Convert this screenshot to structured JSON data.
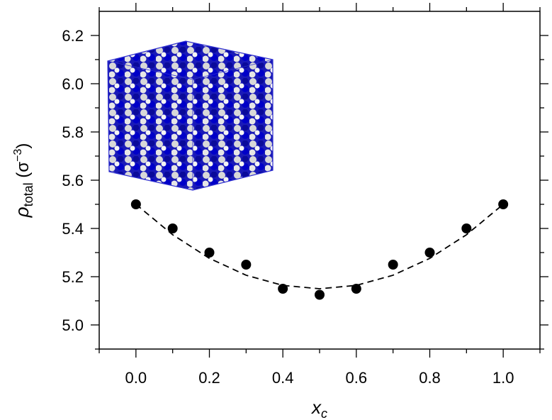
{
  "chart_data": {
    "type": "scatter",
    "xlabel_parts": [
      "x",
      "c"
    ],
    "ylabel_parts": [
      "ρ",
      "total",
      " (σ",
      "−3",
      ")"
    ],
    "x": [
      0.0,
      0.1,
      0.2,
      0.3,
      0.4,
      0.5,
      0.6,
      0.7,
      0.8,
      0.9,
      1.0
    ],
    "values": [
      5.5,
      5.4,
      5.3,
      5.25,
      5.15,
      5.125,
      5.15,
      5.25,
      5.3,
      5.4,
      5.5
    ],
    "color": "#000000",
    "fit": {
      "x": [
        0.0,
        0.1,
        0.2,
        0.3,
        0.4,
        0.5,
        0.6,
        0.7,
        0.8,
        0.9,
        1.0
      ],
      "values": [
        5.5,
        5.374,
        5.276,
        5.206,
        5.164,
        5.15,
        5.164,
        5.206,
        5.276,
        5.374,
        5.5
      ],
      "color": "#000000",
      "dashed": true
    },
    "xlim": [
      -0.1,
      1.1
    ],
    "ylim": [
      4.9,
      6.3
    ],
    "xticks": [
      {
        "value": 0,
        "label": "0.0"
      },
      {
        "value": 0.2,
        "label": "0.2"
      },
      {
        "value": 0.4,
        "label": "0.4"
      },
      {
        "value": 0.6,
        "label": "0.6"
      },
      {
        "value": 0.8,
        "label": "0.8"
      },
      {
        "value": 1,
        "label": "1.0"
      }
    ],
    "xminor": [
      -0.1,
      0.1,
      0.3,
      0.5,
      0.7,
      0.9,
      1.1
    ],
    "yticks": [
      {
        "value": 5,
        "label": "5.0"
      },
      5.2,
      5.4,
      5.6,
      5.8,
      {
        "value": 6,
        "label": "6.0"
      },
      6.2
    ],
    "yminor": [
      4.9,
      5.1,
      5.3,
      5.5,
      5.7,
      5.9,
      6.1
    ],
    "grid": false
  }
}
